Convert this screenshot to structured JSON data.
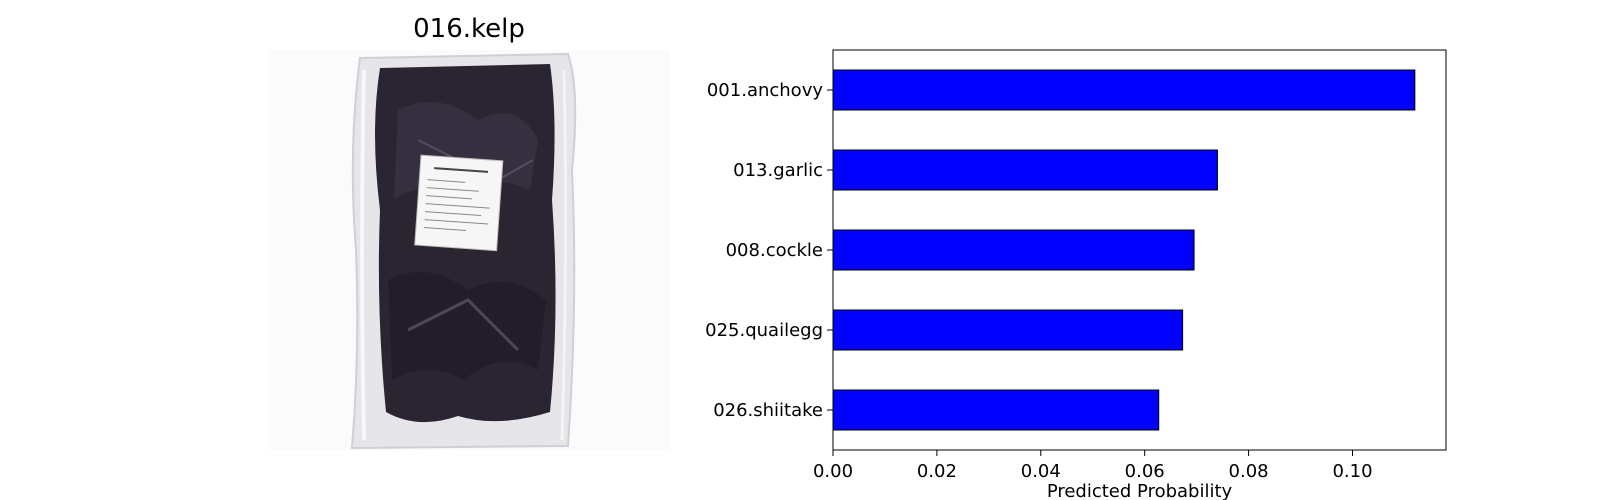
{
  "image_panel": {
    "title": "016.kelp",
    "colors": {
      "background": "#ffffff",
      "bag": "#e9e8ec",
      "kelp": "#2a2430",
      "label": "#f6f6f6"
    }
  },
  "chart_data": {
    "type": "bar",
    "orientation": "horizontal",
    "categories": [
      "001.anchovy",
      "013.garlic",
      "008.cockle",
      "025.quailegg",
      "026.shiitake"
    ],
    "values": [
      0.112,
      0.074,
      0.0695,
      0.0673,
      0.0627
    ],
    "title": "",
    "xlabel": "Predicted Probability",
    "ylabel": "",
    "xlim": [
      0,
      0.118
    ],
    "xticks": [
      0.0,
      0.02,
      0.04,
      0.06,
      0.08,
      0.1
    ],
    "xtick_labels": [
      "0.00",
      "0.02",
      "0.04",
      "0.06",
      "0.08",
      "0.10"
    ],
    "grid": false,
    "bar_color": "#0000ff",
    "edge_color": "#000000"
  }
}
